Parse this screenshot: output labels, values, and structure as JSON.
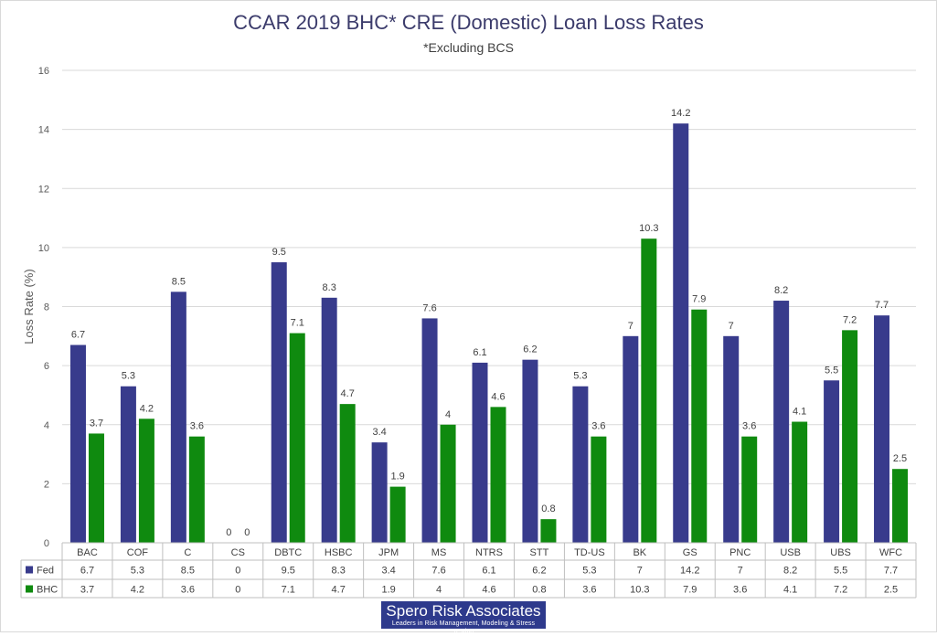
{
  "chart_data": {
    "type": "bar",
    "title": "CCAR 2019 BHC* CRE (Domestic) Loan Loss Rates",
    "subtitle": "*Excluding BCS",
    "ylabel": "Loss Rate (%)",
    "xlabel": "",
    "ylim": [
      0,
      16
    ],
    "yticks": [
      0,
      2,
      4,
      6,
      8,
      10,
      12,
      14,
      16
    ],
    "grid": true,
    "categories": [
      "BAC",
      "COF",
      "C",
      "CS",
      "DBTC",
      "HSBC",
      "JPM",
      "MS",
      "NTRS",
      "STT",
      "TD-US",
      "BK",
      "GS",
      "PNC",
      "USB",
      "UBS",
      "WFC"
    ],
    "series": [
      {
        "name": "Fed",
        "color": "#383b8c",
        "values": [
          6.7,
          5.3,
          8.5,
          0,
          9.5,
          8.3,
          3.4,
          7.6,
          6.1,
          6.2,
          5.3,
          7,
          14.2,
          7,
          8.2,
          5.5,
          7.7
        ]
      },
      {
        "name": "BHC",
        "color": "#0f8a0f",
        "values": [
          3.7,
          4.2,
          3.6,
          0,
          7.1,
          4.7,
          1.9,
          4,
          4.6,
          0.8,
          3.6,
          10.3,
          7.9,
          3.6,
          4.1,
          7.2,
          2.5
        ]
      }
    ],
    "data_table": true
  },
  "logo": {
    "name": "Spero Risk Associates",
    "tagline": "Leaders in Risk Management, Modeling & Stress Testing"
  }
}
